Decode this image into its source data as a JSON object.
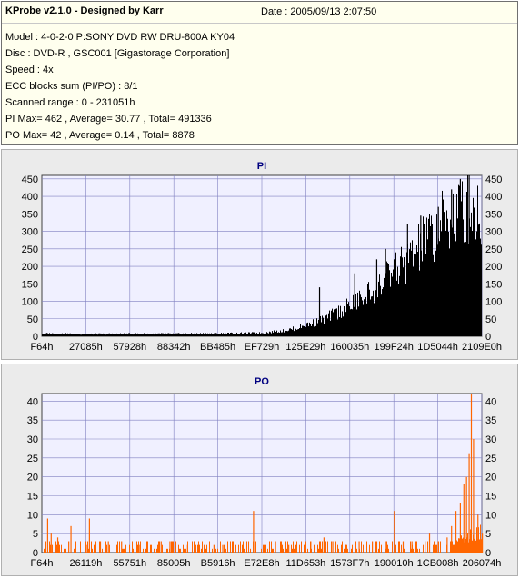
{
  "info": {
    "header": "KProbe v2.1.0 - Designed by Karr",
    "date": "Date : 2005/09/13 2:07:50",
    "lines": [
      "Model : 4-0-2-0 P:SONY    DVD RW DRU-800A  KY04",
      "Disc : DVD-R , GSC001 [Gigastorage Corporation]",
      "Speed : 4x",
      "ECC blocks sum (PI/PO) : 8/1",
      "Scanned range : 0 - 231051h",
      "PI Max= 462 , Average= 30.77 , Total= 491336",
      "PO Max= 42 , Average= 0.14 , Total= 8878"
    ]
  },
  "colors": {
    "plot_bg": "#f0f0ff",
    "grid": "#8080c0",
    "pi_bars": "#000000",
    "po_bars": "#ff6600",
    "title": "#000080",
    "panel_bg": "#ebebeb"
  },
  "chart_data": [
    {
      "type": "bar",
      "title": "PI",
      "xlabel": "",
      "ylabel": "",
      "ylim": [
        0,
        460
      ],
      "yticks": [
        0,
        50,
        100,
        150,
        200,
        250,
        300,
        350,
        400,
        450
      ],
      "xtick_labels": [
        "F64h",
        "27085h",
        "57928h",
        "88342h",
        "BB485h",
        "EF729h",
        "125E29h",
        "160035h",
        "199F24h",
        "1D5044h",
        "2109E0h"
      ],
      "x_range": [
        0,
        231051
      ],
      "grid": true,
      "max": 462,
      "average": 30.77,
      "total": 491336,
      "envelope": [
        [
          0,
          10
        ],
        [
          10,
          8
        ],
        [
          20,
          9
        ],
        [
          30,
          9
        ],
        [
          40,
          10
        ],
        [
          50,
          12
        ],
        [
          55,
          20
        ],
        [
          58,
          30
        ],
        [
          61,
          45
        ],
        [
          64,
          60
        ],
        [
          67,
          85
        ],
        [
          70,
          110
        ],
        [
          73,
          140
        ],
        [
          76,
          175
        ],
        [
          79,
          215
        ],
        [
          82,
          255
        ],
        [
          85,
          300
        ],
        [
          87,
          340
        ],
        [
          89,
          370
        ],
        [
          91,
          400
        ],
        [
          93,
          430
        ],
        [
          95,
          450
        ],
        [
          96,
          462
        ],
        [
          100,
          440
        ]
      ],
      "spikes": [
        [
          63,
          140
        ],
        [
          71,
          180
        ],
        [
          76,
          220
        ],
        [
          78,
          250
        ],
        [
          83,
          320
        ],
        [
          86,
          345
        ],
        [
          90,
          370
        ],
        [
          93,
          420
        ],
        [
          95,
          450
        ],
        [
          97,
          462
        ]
      ]
    },
    {
      "type": "bar",
      "title": "PO",
      "xlabel": "",
      "ylabel": "",
      "ylim": [
        0,
        42
      ],
      "yticks": [
        0,
        5,
        10,
        15,
        20,
        25,
        30,
        35,
        40
      ],
      "xtick_labels": [
        "F64h",
        "26119h",
        "55751h",
        "85005h",
        "B5916h",
        "E72E8h",
        "11D653h",
        "1573F7h",
        "190010h",
        "1CB008h",
        "206074h"
      ],
      "x_range": [
        0,
        231051
      ],
      "grid": true,
      "max": 42,
      "average": 0.14,
      "total": 8878,
      "spikes": [
        [
          1.2,
          9
        ],
        [
          2,
          5
        ],
        [
          3.5,
          4
        ],
        [
          6,
          3
        ],
        [
          6.5,
          7
        ],
        [
          10,
          2
        ],
        [
          10.7,
          9
        ],
        [
          13.2,
          3
        ],
        [
          15,
          3
        ],
        [
          18,
          3
        ],
        [
          22,
          2
        ],
        [
          27,
          3
        ],
        [
          29,
          3
        ],
        [
          33,
          2
        ],
        [
          39,
          2
        ],
        [
          41,
          2
        ],
        [
          48,
          11
        ],
        [
          53,
          3
        ],
        [
          56,
          2
        ],
        [
          61,
          3
        ],
        [
          64,
          4
        ],
        [
          66,
          3
        ],
        [
          69,
          2
        ],
        [
          72,
          3
        ],
        [
          75,
          3
        ],
        [
          76,
          3
        ],
        [
          78,
          3
        ],
        [
          80,
          11
        ],
        [
          82,
          3
        ],
        [
          84,
          3
        ],
        [
          87,
          3
        ],
        [
          88,
          5
        ],
        [
          90,
          3
        ],
        [
          92,
          4
        ],
        [
          93,
          7
        ],
        [
          94,
          11
        ],
        [
          95,
          13
        ],
        [
          95.8,
          18
        ],
        [
          96.4,
          20
        ],
        [
          97,
          26
        ],
        [
          97.5,
          42
        ],
        [
          98,
          30
        ],
        [
          99,
          10
        ],
        [
          100,
          5
        ]
      ]
    }
  ]
}
